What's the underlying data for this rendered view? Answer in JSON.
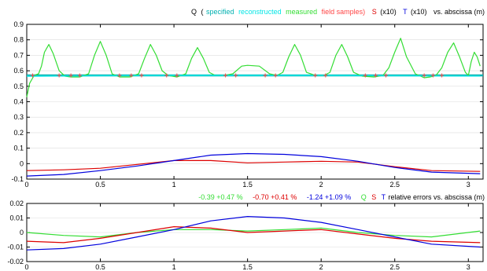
{
  "colors": {
    "black": "#000000",
    "q_specified": "#00b0b0",
    "q_reconstructed": "#00e5e5",
    "q_measured": "#33dd33",
    "field_samples": "#ff4444",
    "s_curve": "#dd0000",
    "t_curve": "#0000dd",
    "grid": "#dddddd"
  },
  "titles": {
    "top": {
      "q": "Q",
      "paren_open": "(",
      "specified": "specified",
      "reconstructed": "reconstructed",
      "measured": "measured",
      "field_samples": "field samples)",
      "s": "S",
      "s_scale": "(x10)",
      "t": "T",
      "t_scale": "(x10)",
      "vs": "vs. abscissa (m)"
    },
    "bottom": {
      "q_err": "-0.39 +0.47  %",
      "s_err": "-0.70 +0.41  %",
      "t_err": "-1.24 +1.09  %",
      "q": "Q",
      "s": "S",
      "t": "T",
      "vs": "relative errors vs. abscissa (m)"
    }
  },
  "chart_data": [
    {
      "type": "line",
      "title": "Q (specified reconstructed measured field samples) S (x10) T (x10) vs. abscissa (m)",
      "xlim": [
        0,
        3.1
      ],
      "ylim": [
        -0.1,
        0.9
      ],
      "xticks": [
        "0",
        "0.5",
        "1",
        "1.5",
        "2",
        "2.5",
        "3"
      ],
      "yticks": [
        "-0.1",
        "0",
        "0.1",
        "0.2",
        "0.3",
        "0.4",
        "0.5",
        "0.6",
        "0.7",
        "0.8",
        "0.9"
      ],
      "grid": true,
      "baseline_specified": 0.57,
      "series": [
        {
          "name": "measured",
          "x": [
            0.0,
            0.02,
            0.05,
            0.08,
            0.1,
            0.12,
            0.15,
            0.18,
            0.22,
            0.26,
            0.3,
            0.36,
            0.42,
            0.46,
            0.5,
            0.54,
            0.58,
            0.63,
            0.7,
            0.76,
            0.8,
            0.84,
            0.88,
            0.92,
            0.96,
            1.02,
            1.08,
            1.12,
            1.16,
            1.2,
            1.24,
            1.28,
            1.34,
            1.4,
            1.46,
            1.5,
            1.58,
            1.65,
            1.7,
            1.74,
            1.78,
            1.82,
            1.86,
            1.9,
            1.96,
            2.02,
            2.06,
            2.1,
            2.14,
            2.18,
            2.22,
            2.28,
            2.36,
            2.42,
            2.46,
            2.5,
            2.54,
            2.58,
            2.64,
            2.7,
            2.74,
            2.78,
            2.82,
            2.86,
            2.9,
            2.94,
            2.98,
            3.0,
            3.02,
            3.04,
            3.06,
            3.08
          ],
          "y": [
            0.43,
            0.52,
            0.57,
            0.58,
            0.63,
            0.72,
            0.77,
            0.71,
            0.6,
            0.565,
            0.56,
            0.56,
            0.58,
            0.7,
            0.79,
            0.7,
            0.58,
            0.56,
            0.56,
            0.58,
            0.68,
            0.77,
            0.7,
            0.6,
            0.57,
            0.56,
            0.58,
            0.68,
            0.75,
            0.68,
            0.59,
            0.57,
            0.57,
            0.58,
            0.63,
            0.635,
            0.63,
            0.58,
            0.57,
            0.59,
            0.69,
            0.77,
            0.7,
            0.59,
            0.57,
            0.57,
            0.59,
            0.7,
            0.77,
            0.69,
            0.59,
            0.565,
            0.56,
            0.57,
            0.62,
            0.72,
            0.81,
            0.69,
            0.58,
            0.555,
            0.56,
            0.57,
            0.62,
            0.72,
            0.78,
            0.69,
            0.59,
            0.57,
            0.66,
            0.72,
            0.69,
            0.63
          ]
        },
        {
          "name": "reconstructed",
          "x": [
            0.0,
            0.5,
            1.0,
            1.5,
            2.0,
            2.5,
            3.08
          ],
          "y": [
            0.565,
            0.568,
            0.57,
            0.57,
            0.57,
            0.568,
            0.566
          ]
        },
        {
          "name": "field samples",
          "x": [
            0.04,
            0.22,
            0.3,
            0.36,
            0.63,
            0.71,
            0.78,
            0.95,
            1.02,
            1.35,
            1.42,
            1.62,
            1.69,
            1.96,
            2.03,
            2.3,
            2.37,
            2.44,
            2.7,
            2.76,
            2.82
          ],
          "y": [
            0.57,
            0.57,
            0.57,
            0.57,
            0.57,
            0.57,
            0.57,
            0.57,
            0.57,
            0.57,
            0.57,
            0.57,
            0.57,
            0.57,
            0.57,
            0.57,
            0.57,
            0.57,
            0.57,
            0.57,
            0.57
          ]
        },
        {
          "name": "S",
          "x": [
            0.0,
            0.25,
            0.5,
            0.75,
            1.0,
            1.25,
            1.5,
            1.75,
            2.0,
            2.25,
            2.5,
            2.75,
            3.08
          ],
          "y": [
            -0.045,
            -0.04,
            -0.03,
            -0.005,
            0.02,
            0.02,
            0.005,
            0.01,
            0.015,
            0.01,
            -0.02,
            -0.045,
            -0.05
          ]
        },
        {
          "name": "T",
          "x": [
            0.0,
            0.25,
            0.5,
            0.75,
            1.0,
            1.25,
            1.5,
            1.75,
            2.0,
            2.25,
            2.5,
            2.75,
            3.08
          ],
          "y": [
            -0.08,
            -0.07,
            -0.045,
            -0.015,
            0.02,
            0.055,
            0.065,
            0.06,
            0.045,
            0.015,
            -0.025,
            -0.055,
            -0.065
          ]
        }
      ]
    },
    {
      "type": "line",
      "title": "-0.39 +0.47 % -0.70 +0.41 % -1.24 +1.09 % Q S T relative errors vs. abscissa (m)",
      "xlim": [
        0,
        3.1
      ],
      "ylim": [
        -0.02,
        0.02
      ],
      "xticks": [
        "0",
        "0.5",
        "1",
        "1.5",
        "2",
        "2.5",
        "3"
      ],
      "yticks": [
        "-0.02",
        "-0.01",
        "0",
        "0.01",
        "0.02"
      ],
      "grid": true,
      "series": [
        {
          "name": "Q",
          "x": [
            0.0,
            0.25,
            0.5,
            0.75,
            1.0,
            1.25,
            1.5,
            1.75,
            2.0,
            2.25,
            2.5,
            2.75,
            3.08
          ],
          "y": [
            0.0,
            -0.002,
            -0.003,
            0.0,
            0.002,
            0.002,
            0.001,
            0.002,
            0.003,
            0.0,
            -0.002,
            -0.003,
            0.001
          ]
        },
        {
          "name": "S",
          "x": [
            0.0,
            0.25,
            0.5,
            0.75,
            1.0,
            1.25,
            1.5,
            1.75,
            2.0,
            2.25,
            2.5,
            2.75,
            3.08
          ],
          "y": [
            -0.006,
            -0.007,
            -0.004,
            0.0,
            0.004,
            0.003,
            0.0,
            0.001,
            0.002,
            -0.001,
            -0.004,
            -0.006,
            -0.007
          ]
        },
        {
          "name": "T",
          "x": [
            0.0,
            0.25,
            0.5,
            0.75,
            1.0,
            1.25,
            1.5,
            1.75,
            2.0,
            2.25,
            2.5,
            2.75,
            3.08
          ],
          "y": [
            -0.012,
            -0.011,
            -0.008,
            -0.003,
            0.002,
            0.008,
            0.011,
            0.01,
            0.007,
            0.002,
            -0.003,
            -0.008,
            -0.01
          ]
        }
      ]
    }
  ]
}
